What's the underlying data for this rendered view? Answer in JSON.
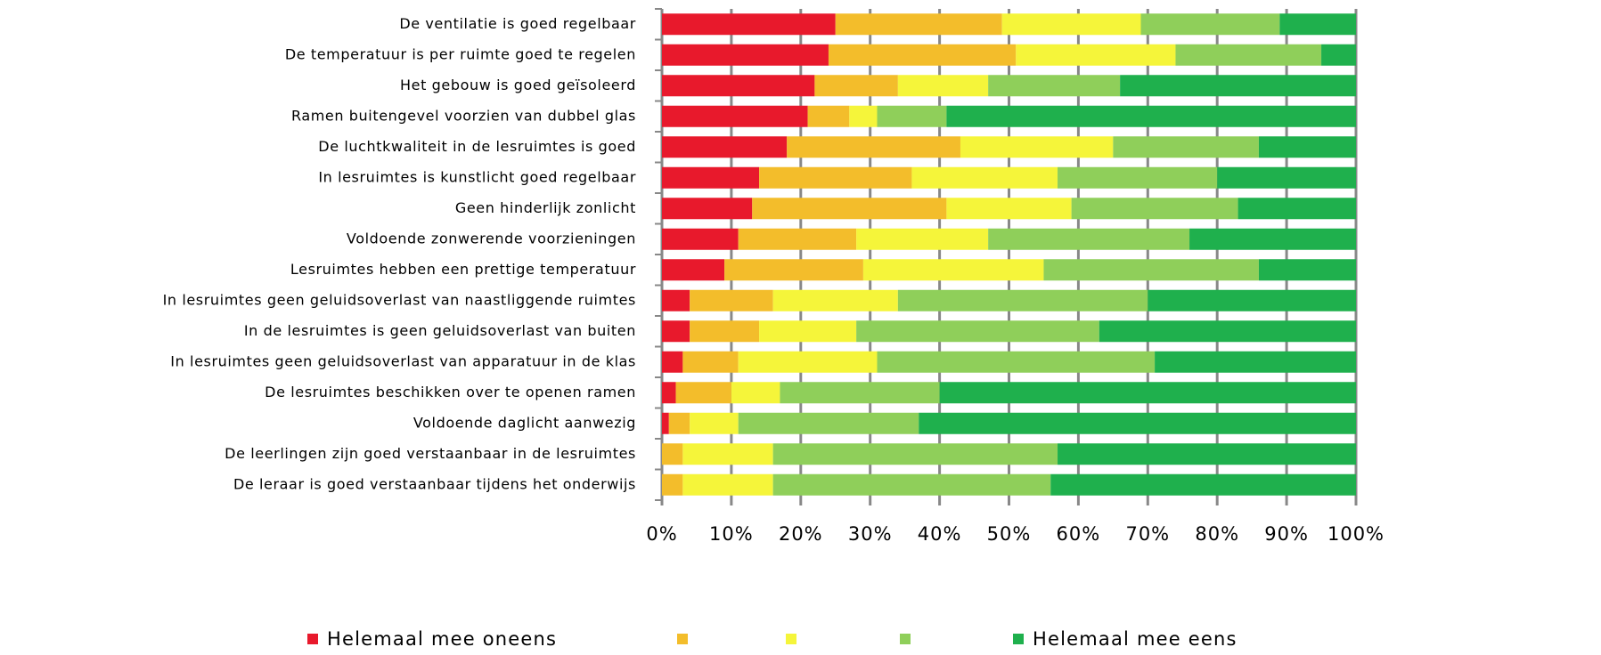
{
  "chart_data": {
    "type": "stacked_barh",
    "categories": [
      "De ventilatie is goed regelbaar",
      "De temperatuur is per ruimte goed te regelen",
      "Het gebouw is goed geïsoleerd",
      "Ramen buitengevel voorzien van dubbel glas",
      "De luchtkwaliteit in de lesruimtes is goed",
      "In lesruimtes is kunstlicht goed regelbaar",
      "Geen hinderlijk zonlicht",
      "Voldoende zonwerende voorzieningen",
      "Lesruimtes hebben een prettige temperatuur",
      "In lesruimtes geen geluidsoverlast van naastliggende ruimtes",
      "In de lesruimtes is geen geluidsoverlast van buiten",
      "In lesruimtes geen geluidsoverlast van apparatuur in de klas",
      "De lesruimtes beschikken over te openen ramen",
      "Voldoende daglicht aanwezig",
      "De leerlingen zijn goed verstaanbaar in de lesruimtes",
      "De leraar is goed verstaanbaar tijdens het onderwijs"
    ],
    "series": [
      {
        "name": "Helemaal mee oneens",
        "color": "#e8192c",
        "values": [
          25,
          24,
          22,
          21,
          18,
          14,
          13,
          11,
          9,
          4,
          4,
          3,
          2,
          1,
          0,
          0
        ]
      },
      {
        "name": null,
        "color": "#f3bd2b",
        "values": [
          24,
          27,
          12,
          6,
          25,
          22,
          28,
          17,
          20,
          12,
          10,
          8,
          8,
          3,
          3,
          3
        ]
      },
      {
        "name": null,
        "color": "#f5f53a",
        "values": [
          20,
          23,
          13,
          4,
          22,
          21,
          18,
          19,
          26,
          18,
          14,
          20,
          7,
          7,
          13,
          13
        ]
      },
      {
        "name": null,
        "color": "#8fcf5a",
        "values": [
          20,
          21,
          19,
          10,
          21,
          23,
          24,
          29,
          31,
          36,
          35,
          40,
          23,
          26,
          41,
          40
        ]
      },
      {
        "name": "Helemaal mee eens",
        "color": "#1fb04d",
        "values": [
          11,
          5,
          34,
          59,
          14,
          20,
          17,
          24,
          14,
          30,
          37,
          29,
          60,
          63,
          43,
          44
        ]
      }
    ],
    "xlim": [
      0,
      100
    ],
    "xticks": [
      {
        "value": 0,
        "label": "0%"
      },
      {
        "value": 10,
        "label": "10%"
      },
      {
        "value": 20,
        "label": "20%"
      },
      {
        "value": 30,
        "label": "30%"
      },
      {
        "value": 40,
        "label": "40%"
      },
      {
        "value": 50,
        "label": "50%"
      },
      {
        "value": 60,
        "label": "60%"
      },
      {
        "value": 70,
        "label": "70%"
      },
      {
        "value": 80,
        "label": "80%"
      },
      {
        "value": 90,
        "label": "90%"
      },
      {
        "value": 100,
        "label": "100%"
      }
    ],
    "grid": true,
    "legend": "bottom"
  }
}
